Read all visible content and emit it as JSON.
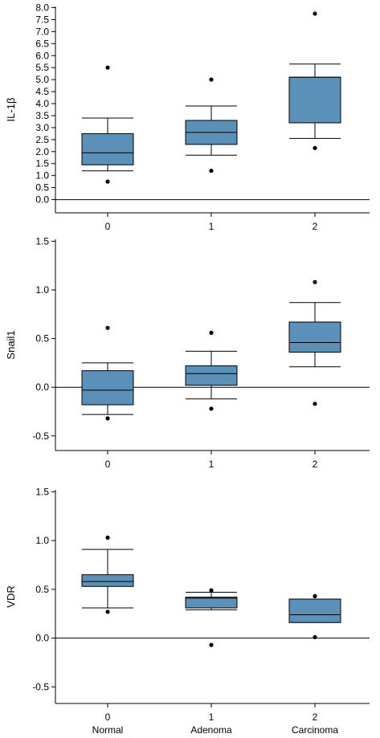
{
  "chart_data": [
    {
      "type": "box",
      "ylabel": "IL-1β",
      "categories": [
        "0",
        "1",
        "2"
      ],
      "yticks": [
        0.0,
        0.5,
        1.0,
        1.5,
        2.0,
        2.5,
        3.0,
        3.5,
        4.0,
        4.5,
        5.0,
        5.5,
        6.0,
        6.5,
        7.0,
        7.5,
        8.0
      ],
      "ytick_labels": [
        "0.0",
        "0.5",
        "1.0",
        "1.5",
        "2.0",
        "2.5",
        "3.0",
        "3.5",
        "4.0",
        "4.5",
        "5.0",
        "5.5",
        "6.0",
        "6.5",
        "7.0",
        "7.5",
        "8.0"
      ],
      "ylim": [
        -0.55,
        8.05
      ],
      "reference_line": 0,
      "boxes": [
        {
          "category": "0",
          "whisker_low": 1.2,
          "q1": 1.45,
          "median": 1.95,
          "q3": 2.75,
          "whisker_high": 3.4,
          "outliers": [
            0.75,
            5.5
          ]
        },
        {
          "category": "1",
          "whisker_low": 1.85,
          "q1": 2.3,
          "median": 2.8,
          "q3": 3.3,
          "whisker_high": 3.9,
          "outliers": [
            1.2,
            5.0
          ]
        },
        {
          "category": "2",
          "whisker_low": 2.55,
          "q1": 3.2,
          "median": 5.1,
          "q3": 5.1,
          "whisker_high": 5.65,
          "outliers": [
            2.15,
            7.75
          ]
        }
      ]
    },
    {
      "type": "box",
      "ylabel": "Snail1",
      "categories": [
        "0",
        "1",
        "2"
      ],
      "yticks": [
        -0.5,
        0.0,
        0.5,
        1.0,
        1.5
      ],
      "ytick_labels": [
        "-0.5",
        "0.0",
        "0.5",
        "1.0",
        "1.5"
      ],
      "ylim": [
        -0.65,
        1.52
      ],
      "reference_line": 0,
      "boxes": [
        {
          "category": "0",
          "whisker_low": -0.28,
          "q1": -0.18,
          "median": -0.03,
          "q3": 0.17,
          "whisker_high": 0.25,
          "outliers": [
            -0.32,
            0.61
          ]
        },
        {
          "category": "1",
          "whisker_low": -0.12,
          "q1": 0.02,
          "median": 0.14,
          "q3": 0.22,
          "whisker_high": 0.37,
          "outliers": [
            -0.22,
            0.56
          ]
        },
        {
          "category": "2",
          "whisker_low": 0.21,
          "q1": 0.36,
          "median": 0.46,
          "q3": 0.67,
          "whisker_high": 0.87,
          "outliers": [
            -0.17,
            1.08
          ]
        }
      ]
    },
    {
      "type": "box",
      "ylabel": "VDR",
      "categories": [
        "0",
        "1",
        "2"
      ],
      "category_names": [
        "Normal",
        "Adenoma",
        "Carcinoma"
      ],
      "yticks": [
        -0.5,
        0.0,
        0.5,
        1.0,
        1.5
      ],
      "ytick_labels": [
        "-0.5",
        "0.0",
        "0.5",
        "1.0",
        "1.5"
      ],
      "ylim": [
        -0.67,
        1.52
      ],
      "reference_line": 0,
      "boxes": [
        {
          "category": "0",
          "whisker_low": 0.31,
          "q1": 0.53,
          "median": 0.58,
          "q3": 0.65,
          "whisker_high": 0.91,
          "outliers": [
            0.27,
            1.03
          ]
        },
        {
          "category": "1",
          "whisker_low": 0.29,
          "q1": 0.31,
          "median": 0.41,
          "q3": 0.42,
          "whisker_high": 0.47,
          "outliers": [
            -0.07,
            0.49
          ]
        },
        {
          "category": "2",
          "whisker_low": 0.16,
          "q1": 0.16,
          "median": 0.24,
          "q3": 0.4,
          "whisker_high": 0.4,
          "outliers": [
            0.01,
            0.43
          ]
        }
      ]
    }
  ],
  "style": {
    "box_fill": "#5b91b8",
    "box_stroke": "#000000",
    "point_color": "#000000",
    "axis_color": "#000000",
    "background": "#ffffff"
  }
}
